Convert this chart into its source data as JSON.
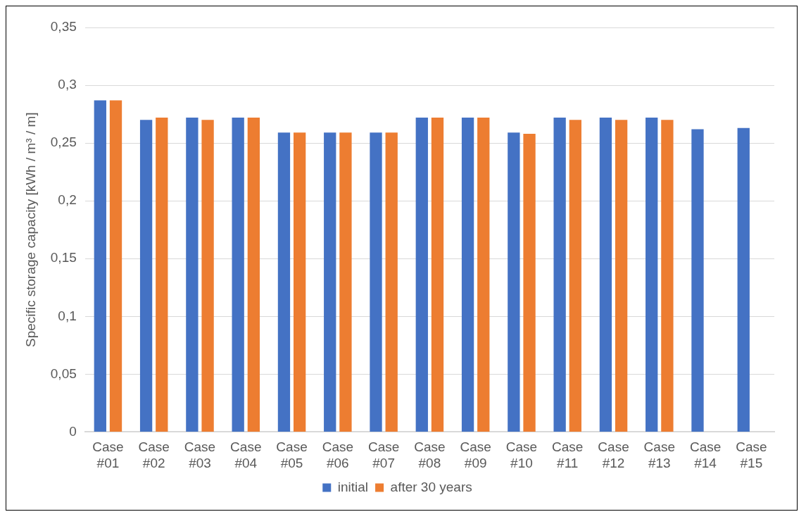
{
  "chart_data": {
    "type": "bar",
    "ylabel": "Specific storage capacity [kWh / m³ / m]",
    "categories": [
      "Case #01",
      "Case #02",
      "Case #03",
      "Case #04",
      "Case #05",
      "Case #06",
      "Case #07",
      "Case #08",
      "Case #09",
      "Case #10",
      "Case #11",
      "Case #12",
      "Case #13",
      "Case #14",
      "Case #15"
    ],
    "series": [
      {
        "name": "initial",
        "color": "#4472c4",
        "values": [
          0.287,
          0.27,
          0.272,
          0.272,
          0.259,
          0.259,
          0.259,
          0.272,
          0.272,
          0.259,
          0.272,
          0.272,
          0.272,
          0.262,
          0.263
        ]
      },
      {
        "name": "after 30 years",
        "color": "#ed7d31",
        "values": [
          0.287,
          0.272,
          0.27,
          0.272,
          0.259,
          0.259,
          0.259,
          0.272,
          0.272,
          0.258,
          0.27,
          0.27,
          0.27,
          null,
          null
        ]
      }
    ],
    "ylim": [
      0,
      0.35
    ],
    "yticks": [
      {
        "value": 0,
        "label": "0"
      },
      {
        "value": 0.05,
        "label": "0,05"
      },
      {
        "value": 0.1,
        "label": "0,1"
      },
      {
        "value": 0.15,
        "label": "0,15"
      },
      {
        "value": 0.2,
        "label": "0,2"
      },
      {
        "value": 0.25,
        "label": "0,25"
      },
      {
        "value": 0.3,
        "label": "0,3"
      },
      {
        "value": 0.35,
        "label": "0,35"
      }
    ],
    "grid": "y",
    "legend": "bottom"
  }
}
